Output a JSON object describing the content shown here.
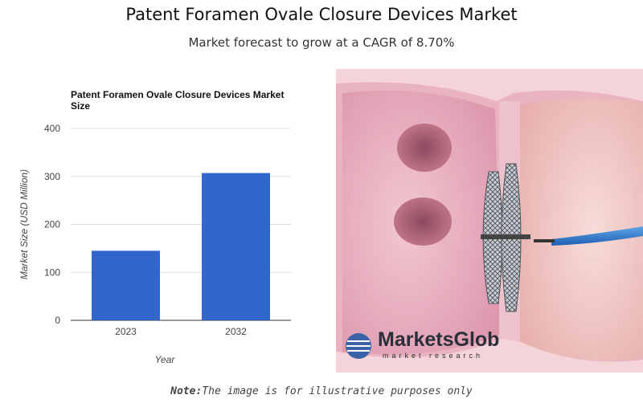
{
  "page": {
    "title": "Patent Foramen Ovale Closure Devices Market",
    "subtitle": "Market forecast to grow at a CAGR of 8.70%",
    "note_label": "Note:",
    "note_text": "The image is for illustrative purposes only"
  },
  "illustration": {
    "logo_name": "MarketsGlob",
    "logo_tagline": "market research"
  },
  "chart_data": {
    "type": "bar",
    "title": "Patent Foramen Ovale Closure Devices Market Size",
    "categories": [
      "2023",
      "2032"
    ],
    "values": [
      145,
      307
    ],
    "xlabel": "Year",
    "ylabel": "Market Size (USD Million)",
    "ylim": [
      0,
      400
    ],
    "yticks": [
      0,
      100,
      200,
      300,
      400
    ],
    "grid": true,
    "bar_color": "#3366cc"
  }
}
